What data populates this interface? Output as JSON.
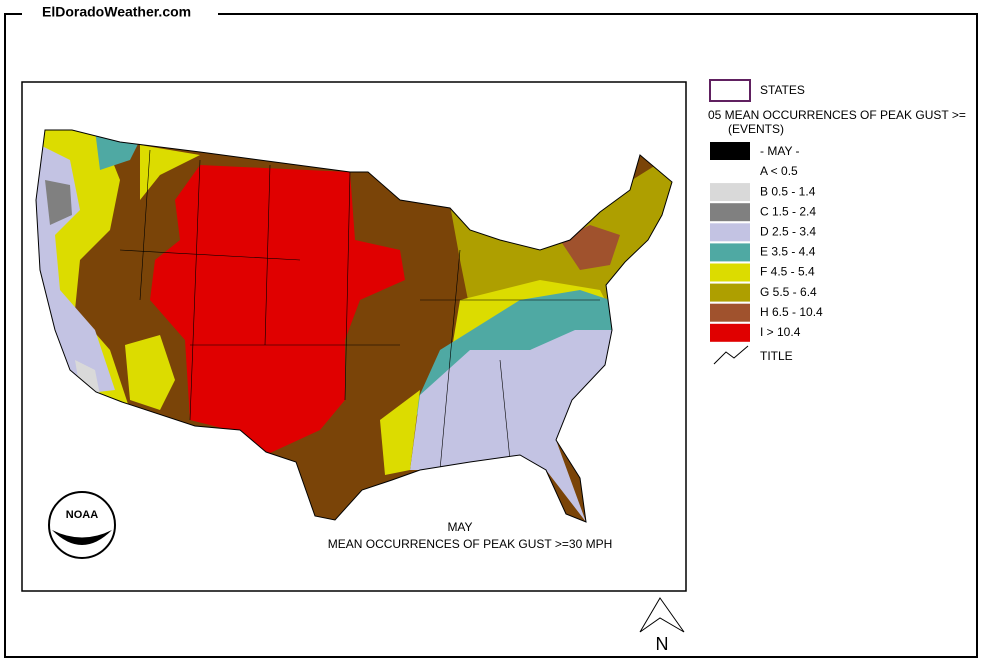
{
  "header": {
    "title": "ElDoradoWeather.com"
  },
  "map": {
    "caption_month": "MAY",
    "caption_title": "MEAN OCCURRENCES OF PEAK GUST >=30 MPH",
    "logo": "NOAA",
    "north": "N"
  },
  "legend": {
    "states": "STATES",
    "heading": "05 MEAN OCCURRENCES OF PEAK GUST >=",
    "units": "(EVENTS)",
    "month": "- MAY -",
    "classes": [
      {
        "label": "A < 0.5",
        "color": "#ffffff"
      },
      {
        "label": "B 0.5 - 1.4",
        "color": "#d9d9d9"
      },
      {
        "label": "C 1.5 - 2.4",
        "color": "#808080"
      },
      {
        "label": "D 2.5 - 3.4",
        "color": "#c3c3e3"
      },
      {
        "label": "E 3.5 - 4.4",
        "color": "#4fa9a3"
      },
      {
        "label": "F 4.5 - 5.4",
        "color": "#dcdc00"
      },
      {
        "label": "G 5.5 - 6.4",
        "color": "#ae9f00"
      },
      {
        "label": "H 6.5 - 10.4",
        "color": "#a0522d"
      },
      {
        "label": "I > 10.4",
        "color": "#e00000"
      }
    ],
    "title": "TITLE"
  }
}
